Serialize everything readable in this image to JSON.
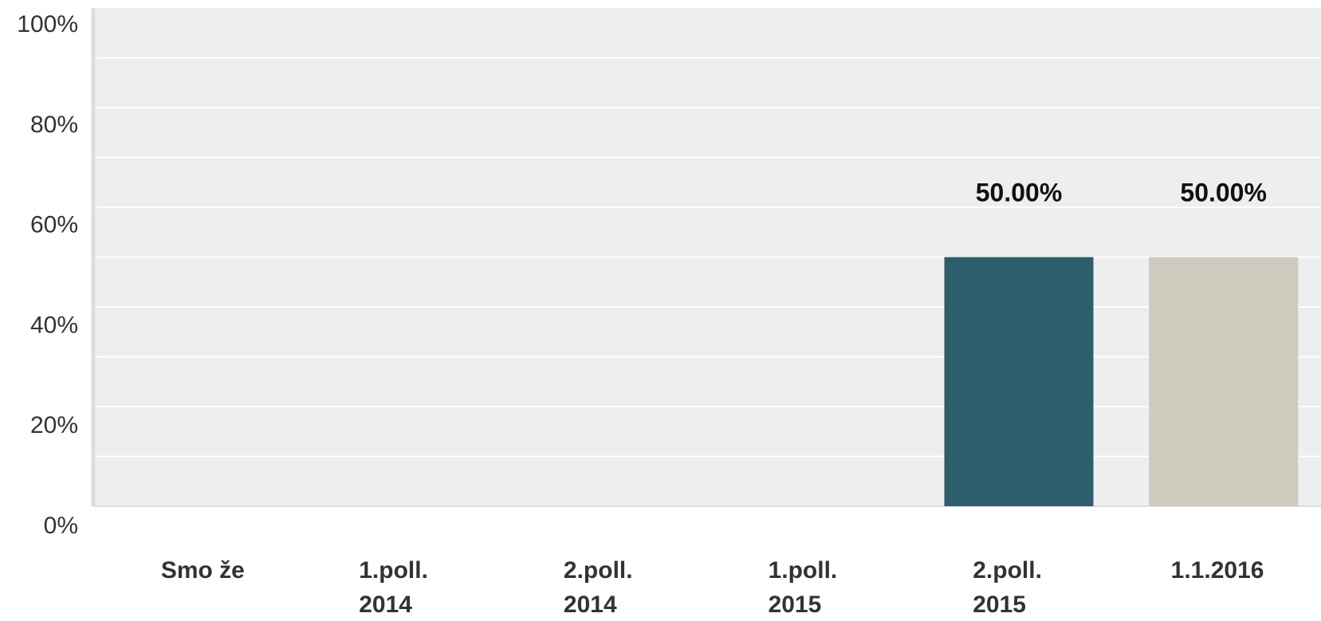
{
  "chart_data": {
    "type": "bar",
    "categories": [
      [
        "Smo že"
      ],
      [
        "1.poll.",
        "2014"
      ],
      [
        "2.poll.",
        "2014"
      ],
      [
        "1.poll.",
        "2015"
      ],
      [
        "2.poll.",
        "2015"
      ],
      [
        "1.1.2016"
      ]
    ],
    "values": [
      0,
      0,
      0,
      0,
      50,
      50
    ],
    "data_labels": [
      "",
      "",
      "",
      "",
      "50.00%",
      "50.00%"
    ],
    "bar_colors": [
      "#2e5d6b",
      "#2e5d6b",
      "#2e5d6b",
      "#2e5d6b",
      "#2e5d6b",
      "#cccbbd"
    ],
    "yticks": [
      0,
      20,
      40,
      60,
      80,
      100
    ],
    "ytick_labels": [
      "0%",
      "20%",
      "40%",
      "60%",
      "80%",
      "100%"
    ],
    "ylim": [
      0,
      100
    ],
    "title": "",
    "xlabel": "",
    "ylabel": "",
    "grid": true,
    "legend": "none",
    "colors": {
      "plot_background": "#eeeeee",
      "gridline": "#ffffff",
      "axis": "#dddddd"
    }
  }
}
